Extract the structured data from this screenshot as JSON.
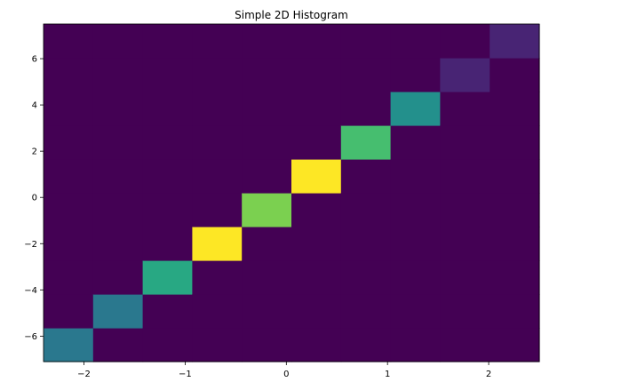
{
  "chart_data": {
    "type": "heatmap",
    "title": "Simple 2D Histogram",
    "xlabel": "",
    "ylabel": "",
    "xlim": [
      -2.4,
      2.5
    ],
    "ylim": [
      -7.1,
      7.5
    ],
    "x_edges": [
      -2.4,
      -1.91,
      -1.42,
      -0.93,
      -0.44,
      0.05,
      0.54,
      1.03,
      1.52,
      2.01,
      2.5
    ],
    "y_edges": [
      -7.1,
      -5.64,
      -4.18,
      -2.72,
      -1.26,
      0.2,
      1.66,
      3.12,
      4.58,
      6.04,
      7.5
    ],
    "x_ticks": [
      -2,
      -1,
      0,
      1,
      2
    ],
    "x_tick_labels": [
      "−2",
      "−1",
      "0",
      "1",
      "2"
    ],
    "y_ticks": [
      -6,
      -4,
      -2,
      0,
      2,
      4,
      6
    ],
    "y_tick_labels": [
      "−6",
      "−4",
      "−2",
      "0",
      "2",
      "4",
      "6"
    ],
    "counts_by_column": [
      [
        4,
        0,
        0,
        0,
        0,
        0,
        0,
        0,
        0,
        0
      ],
      [
        0,
        4,
        0,
        0,
        0,
        0,
        0,
        0,
        0,
        0
      ],
      [
        0,
        0,
        6,
        0,
        0,
        0,
        0,
        0,
        0,
        0
      ],
      [
        0,
        0,
        0,
        10,
        0,
        0,
        0,
        0,
        0,
        0
      ],
      [
        0,
        0,
        0,
        0,
        8,
        0,
        0,
        0,
        0,
        0
      ],
      [
        0,
        0,
        0,
        0,
        0,
        10,
        0,
        0,
        0,
        0
      ],
      [
        0,
        0,
        0,
        0,
        0,
        0,
        7,
        0,
        0,
        0
      ],
      [
        0,
        0,
        0,
        0,
        0,
        0,
        0,
        5,
        0,
        0
      ],
      [
        0,
        0,
        0,
        0,
        0,
        0,
        0,
        0,
        1,
        0
      ],
      [
        0,
        0,
        0,
        0,
        0,
        0,
        0,
        0,
        0,
        1
      ]
    ],
    "vmin": 0,
    "vmax": 10,
    "colormap": "viridis",
    "grid": false
  }
}
